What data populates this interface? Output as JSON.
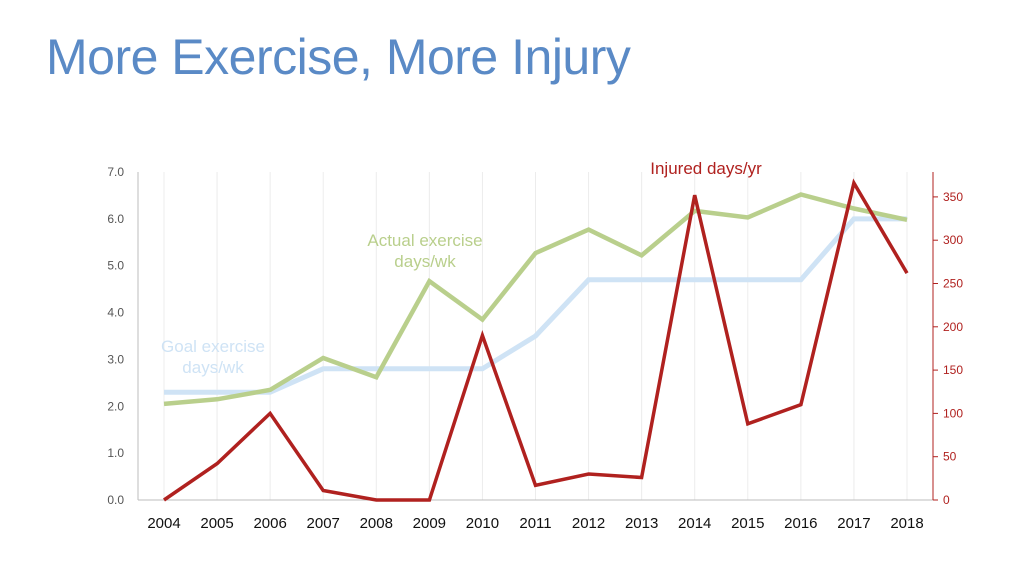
{
  "slide": {
    "title": "More Exercise, More Injury"
  },
  "chart_data": {
    "type": "line",
    "x": [
      "2004",
      "2005",
      "2006",
      "2007",
      "2008",
      "2009",
      "2010",
      "2011",
      "2012",
      "2013",
      "2014",
      "2015",
      "2016",
      "2017",
      "2018"
    ],
    "y_left": {
      "ylim": [
        0,
        7
      ],
      "ticks": [
        "0.0",
        "1.0",
        "2.0",
        "3.0",
        "4.0",
        "5.0",
        "6.0",
        "7.0"
      ]
    },
    "y_right": {
      "ylim": [
        0,
        380
      ],
      "ticks": [
        "0",
        "50",
        "100",
        "150",
        "200",
        "250",
        "300",
        "350"
      ]
    },
    "grid": "vertical",
    "series": [
      {
        "name_lines": [
          "Goal exercise",
          "days/wk"
        ],
        "axis": "left",
        "color": "#cfe3f5",
        "values": [
          2.3,
          2.3,
          2.3,
          2.8,
          2.8,
          2.8,
          2.8,
          3.5,
          4.7,
          4.7,
          4.7,
          4.7,
          4.7,
          6.0,
          6.0
        ]
      },
      {
        "name_lines": [
          "Actual exercise",
          "days/wk"
        ],
        "axis": "left",
        "color": "#b9cf8c",
        "values": [
          2.05,
          2.15,
          2.35,
          3.03,
          2.62,
          4.67,
          3.85,
          5.27,
          5.77,
          5.22,
          6.17,
          6.03,
          6.52,
          6.22,
          5.98
        ]
      },
      {
        "name_lines": [
          "Injured days/yr"
        ],
        "axis": "right",
        "color": "#b0211f",
        "values": [
          0,
          42,
          100,
          11,
          0,
          0,
          190,
          17,
          30,
          26,
          352,
          88,
          110,
          366,
          262
        ]
      }
    ]
  }
}
